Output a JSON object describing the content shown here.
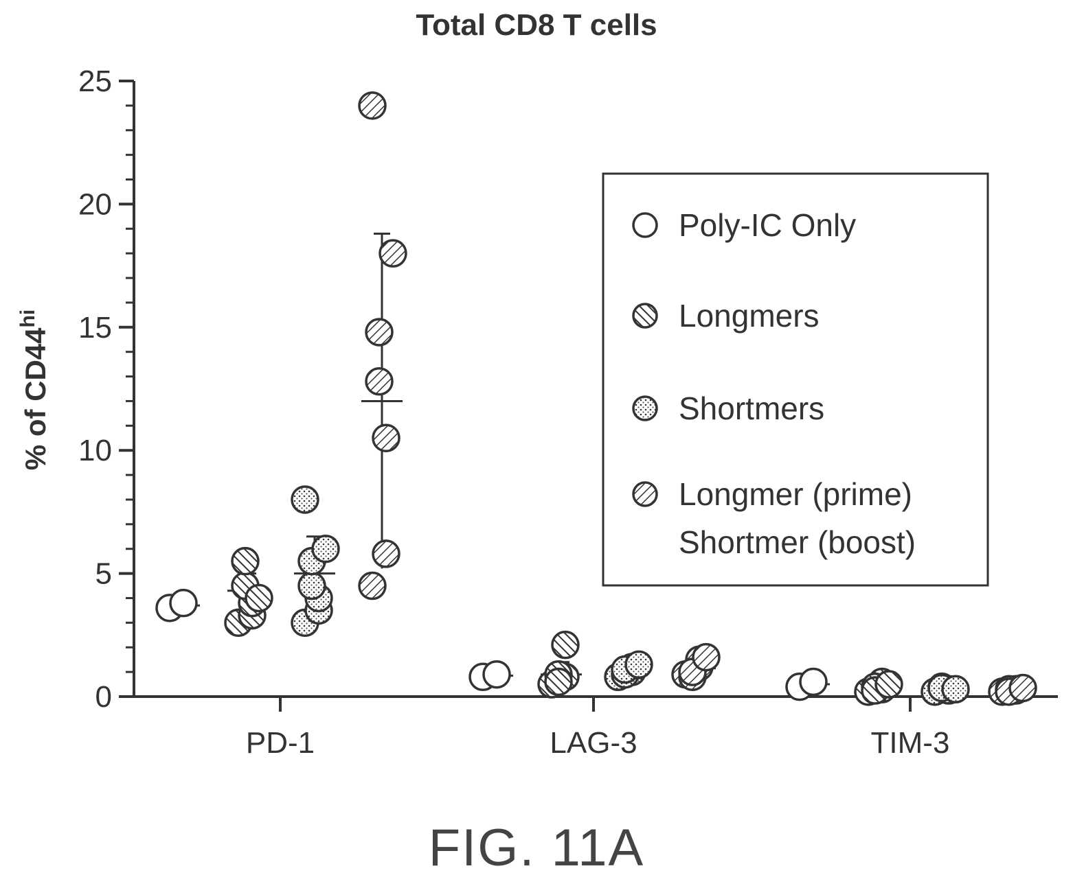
{
  "chart_data": {
    "type": "scatter",
    "title": "Total CD8 T cells",
    "ylabel": "% of CD44",
    "ylabel_sup": "hi",
    "ylim": [
      0,
      25
    ],
    "yticks": [
      "0",
      "5",
      "10",
      "15",
      "20",
      "25"
    ],
    "categories": [
      "PD-1",
      "LAG-3",
      "TIM-3"
    ],
    "grid": false,
    "legend_position": "right",
    "series": [
      {
        "name": "Poly-IC Only",
        "pattern": "open",
        "values": [
          [
            3.6,
            3.8
          ],
          [
            0.8,
            0.9
          ],
          [
            0.4,
            0.6
          ]
        ],
        "means": [
          3.7,
          0.85,
          0.5
        ],
        "errors": [
          0.1,
          0.05,
          0.1
        ]
      },
      {
        "name": "Longmers",
        "pattern": "hatch-back",
        "values": [
          [
            3.0,
            3.3,
            3.8,
            4.5,
            5.5,
            4.0
          ],
          [
            0.5,
            0.8,
            2.1,
            0.9,
            0.6
          ],
          [
            0.2,
            0.3,
            0.6,
            0.4,
            0.25,
            0.5
          ]
        ],
        "means": [
          4.3,
          0.9,
          0.35
        ],
        "errors": [
          0.7,
          0.5,
          0.1
        ]
      },
      {
        "name": "Shortmers",
        "pattern": "dots",
        "values": [
          [
            3.0,
            3.5,
            4.0,
            4.5,
            5.5,
            6.0,
            8.0
          ],
          [
            0.8,
            1.0,
            1.2,
            0.9,
            1.1,
            1.3
          ],
          [
            0.2,
            0.3,
            0.25,
            0.4,
            0.35,
            0.3
          ]
        ],
        "means": [
          5.0,
          1.05,
          0.3
        ],
        "errors": [
          1.5,
          0.2,
          0.1
        ]
      },
      {
        "name": "Longmer (prime)\nShortmer (boost)",
        "pattern": "hatch-fwd",
        "values": [
          [
            4.5,
            5.8,
            10.5,
            12.8,
            14.8,
            18.0,
            24.0
          ],
          [
            0.9,
            1.2,
            1.5,
            0.8,
            1.0,
            1.6
          ],
          [
            0.2,
            0.3,
            0.25,
            0.3,
            0.2,
            0.35
          ]
        ],
        "means": [
          12.0,
          1.15,
          0.28
        ],
        "errors": [
          6.8,
          0.3,
          0.05
        ]
      }
    ],
    "legend": [
      "Poly-IC Only",
      "Longmers",
      "Shortmers",
      "Longmer (prime)",
      "Shortmer (boost)"
    ]
  },
  "figure_label": "FIG. 11A"
}
